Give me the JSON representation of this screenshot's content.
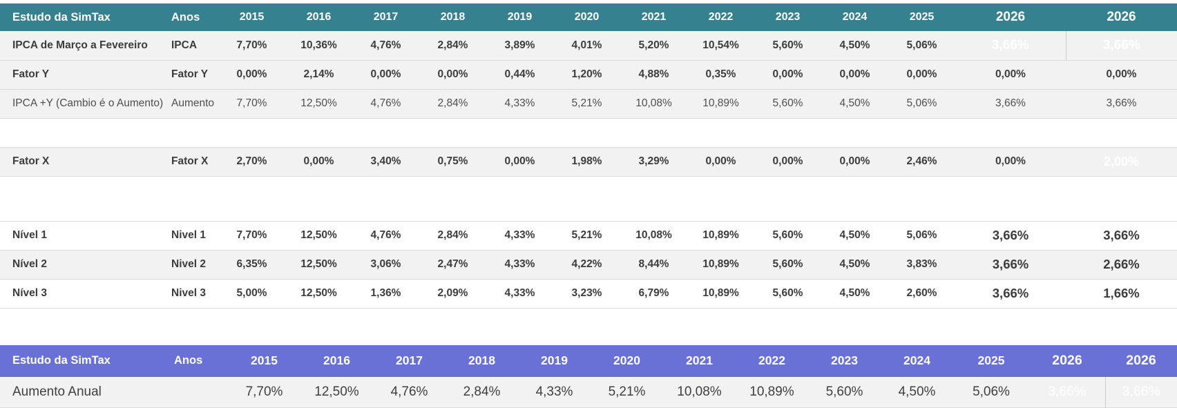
{
  "colors": {
    "teal_header": "#35818F",
    "purple_header": "#6971D7",
    "red_highlight": "#C90A0C",
    "maroon_highlight": "#750D10",
    "row_gray": "#F2F2F2"
  },
  "years": [
    "2015",
    "2016",
    "2017",
    "2018",
    "2019",
    "2020",
    "2021",
    "2022",
    "2023",
    "2024",
    "2025",
    "2026",
    "2026"
  ],
  "top_table": {
    "title": "Estudo da SimTax",
    "anos_label": "Anos",
    "rows": [
      {
        "id": "ipca",
        "label": "IPCA de Março a Fevereiro",
        "key": "IPCA",
        "weight": "bold",
        "bg": "gray",
        "highlight": "red-last-two",
        "values": [
          "7,70%",
          "10,36%",
          "4,76%",
          "2,84%",
          "3,89%",
          "4,01%",
          "5,20%",
          "10,54%",
          "5,60%",
          "4,50%",
          "5,06%",
          "3,66%",
          "3,66%"
        ]
      },
      {
        "id": "fator-y",
        "label": "Fator Y",
        "key": "Fator Y",
        "weight": "bold",
        "bg": "gray",
        "highlight": "none",
        "values": [
          "0,00%",
          "2,14%",
          "0,00%",
          "0,00%",
          "0,44%",
          "1,20%",
          "4,88%",
          "0,35%",
          "0,00%",
          "0,00%",
          "0,00%",
          "0,00%",
          "0,00%"
        ]
      },
      {
        "id": "aumento",
        "label": "IPCA +Y (Cambio é o Aumento)",
        "key": "Aumento",
        "weight": "regular",
        "bg": "gray",
        "highlight": "none",
        "values": [
          "7,70%",
          "12,50%",
          "4,76%",
          "2,84%",
          "4,33%",
          "5,21%",
          "10,08%",
          "10,89%",
          "5,60%",
          "4,50%",
          "5,06%",
          "3,66%",
          "3,66%"
        ]
      },
      {
        "id": "spacer-1",
        "type": "spacer"
      },
      {
        "id": "fator-x",
        "label": "Fator X",
        "key": "Fator X",
        "weight": "bold",
        "bg": "gray",
        "highlight": "maroon-last",
        "border_top": true,
        "values": [
          "2,70%",
          "0,00%",
          "3,40%",
          "0,75%",
          "0,00%",
          "1,98%",
          "3,29%",
          "0,00%",
          "0,00%",
          "0,00%",
          "2,46%",
          "0,00%",
          "2,00%"
        ]
      },
      {
        "id": "spacer-2",
        "type": "spacer",
        "tall": true
      },
      {
        "id": "nivel-1",
        "label": "Nível 1",
        "key": "Nivel 1",
        "weight": "bold",
        "bg": "white",
        "highlight": "big-last-two",
        "border_top": true,
        "values": [
          "7,70%",
          "12,50%",
          "4,76%",
          "2,84%",
          "4,33%",
          "5,21%",
          "10,08%",
          "10,89%",
          "5,60%",
          "4,50%",
          "5,06%",
          "3,66%",
          "3,66%"
        ]
      },
      {
        "id": "nivel-2",
        "label": "Nível 2",
        "key": "Nivel 2",
        "weight": "bold",
        "bg": "gray",
        "highlight": "big-last-two",
        "values": [
          "6,35%",
          "12,50%",
          "3,06%",
          "2,47%",
          "4,33%",
          "4,22%",
          "8,44%",
          "10,89%",
          "5,60%",
          "4,50%",
          "3,83%",
          "3,66%",
          "2,66%"
        ]
      },
      {
        "id": "nivel-3",
        "label": "Nível 3",
        "key": "Nivel 3",
        "weight": "bold",
        "bg": "white",
        "highlight": "big-last-two",
        "values": [
          "5,00%",
          "12,50%",
          "1,36%",
          "2,09%",
          "4,33%",
          "3,23%",
          "6,79%",
          "10,89%",
          "5,60%",
          "4,50%",
          "2,60%",
          "3,66%",
          "1,66%"
        ]
      }
    ]
  },
  "bottom_table": {
    "title": "Estudo da SimTax",
    "anos_label": "Anos",
    "rows": [
      {
        "id": "aumento-anual",
        "label": "Aumento Anual",
        "key": "",
        "weight": "regular",
        "bg": "gray",
        "highlight": "maroon-last-two",
        "values": [
          "7,70%",
          "12,50%",
          "4,76%",
          "2,84%",
          "4,33%",
          "5,21%",
          "10,08%",
          "10,89%",
          "5,60%",
          "4,50%",
          "5,06%",
          "3,66%",
          "3,66%"
        ]
      }
    ]
  }
}
